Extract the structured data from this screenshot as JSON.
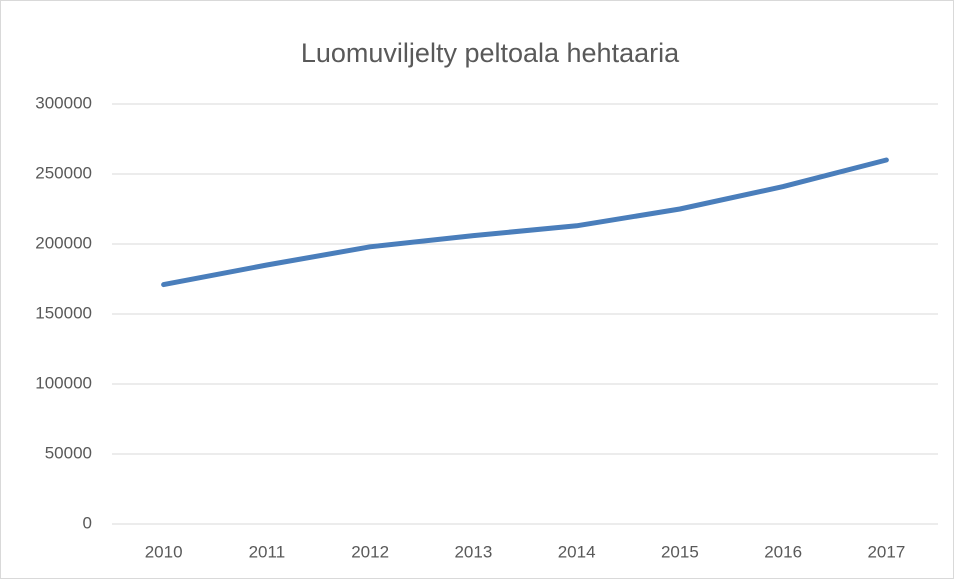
{
  "chart_data": {
    "type": "line",
    "title": "Luomuviljelty peltoala hehtaaria",
    "categories": [
      "2010",
      "2011",
      "2012",
      "2013",
      "2014",
      "2015",
      "2016",
      "2017"
    ],
    "series": [
      {
        "name": "Luomuviljelty peltoala",
        "color": "#4a7ebb",
        "values": [
          171000,
          185000,
          198000,
          206000,
          213000,
          225000,
          241000,
          260000
        ]
      }
    ],
    "ylim": [
      0,
      300000
    ],
    "yticks": [
      0,
      50000,
      100000,
      150000,
      200000,
      250000,
      300000
    ],
    "grid": true
  }
}
